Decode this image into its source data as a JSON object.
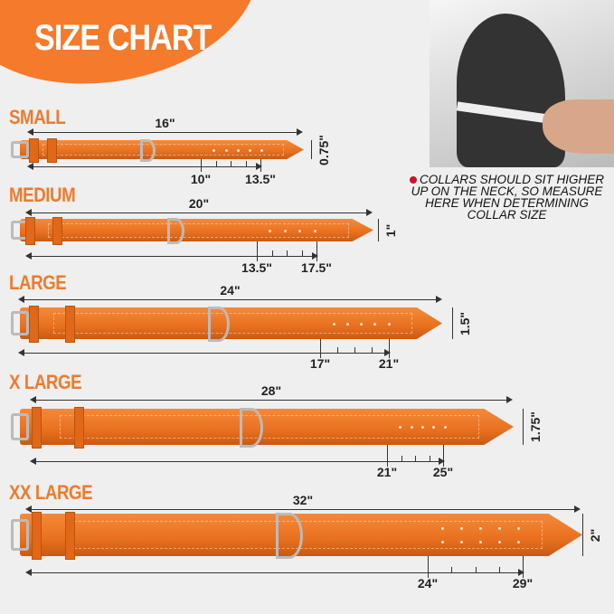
{
  "title": "SIZE CHART",
  "note": "COLLARS SHOULD SIT HIGHER UP ON THE NECK, SO MEASURE HERE WHEN DETERMINING COLLAR SIZE",
  "colors": {
    "accent": "#f47a2c",
    "collar": "#e8701f",
    "bullet": "#d0102a"
  },
  "sizes": [
    {
      "name": "SMALL",
      "length": "16\"",
      "width": "0.75\"",
      "min": "10\"",
      "max": "13.5\""
    },
    {
      "name": "MEDIUM",
      "length": "20\"",
      "width": "1\"",
      "min": "13.5\"",
      "max": "17.5\""
    },
    {
      "name": "LARGE",
      "length": "24\"",
      "width": "1.5\"",
      "min": "17\"",
      "max": "21\""
    },
    {
      "name": "X LARGE",
      "length": "28\"",
      "width": "1.75\"",
      "min": "21\"",
      "max": "25\""
    },
    {
      "name": "XX LARGE",
      "length": "32\"",
      "width": "2\"",
      "min": "24\"",
      "max": "29\""
    }
  ]
}
